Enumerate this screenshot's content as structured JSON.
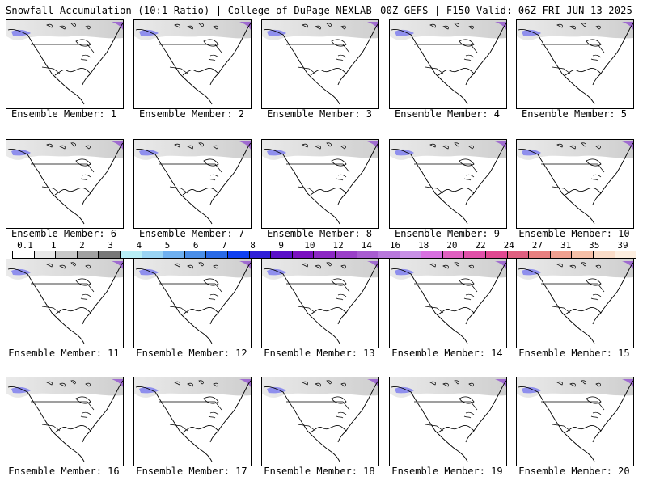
{
  "header": {
    "left": "Snowfall Accumulation (10:1 Ratio) | College of DuPage NEXLAB",
    "right": "00Z GEFS | F150 Valid: 06Z FRI JUN 13 2025"
  },
  "panels": [
    {
      "member": 1,
      "label": "Ensemble Member: 1"
    },
    {
      "member": 2,
      "label": "Ensemble Member: 2"
    },
    {
      "member": 3,
      "label": "Ensemble Member: 3"
    },
    {
      "member": 4,
      "label": "Ensemble Member: 4"
    },
    {
      "member": 5,
      "label": "Ensemble Member: 5"
    },
    {
      "member": 6,
      "label": "Ensemble Member: 6"
    },
    {
      "member": 7,
      "label": "Ensemble Member: 7"
    },
    {
      "member": 8,
      "label": "Ensemble Member: 8"
    },
    {
      "member": 9,
      "label": "Ensemble Member: 9"
    },
    {
      "member": 10,
      "label": "Ensemble Member: 10"
    },
    {
      "member": 11,
      "label": "Ensemble Member: 11"
    },
    {
      "member": 12,
      "label": "Ensemble Member: 12"
    },
    {
      "member": 13,
      "label": "Ensemble Member: 13"
    },
    {
      "member": 14,
      "label": "Ensemble Member: 14"
    },
    {
      "member": 15,
      "label": "Ensemble Member: 15"
    },
    {
      "member": 16,
      "label": "Ensemble Member: 16"
    },
    {
      "member": 17,
      "label": "Ensemble Member: 17"
    },
    {
      "member": 18,
      "label": "Ensemble Member: 18"
    },
    {
      "member": 19,
      "label": "Ensemble Member: 19"
    },
    {
      "member": 20,
      "label": "Ensemble Member: 20"
    }
  ],
  "colorbar": {
    "labels": [
      "0.1",
      "1",
      "2",
      "3",
      "4",
      "5",
      "6",
      "7",
      "8",
      "9",
      "10",
      "12",
      "14",
      "16",
      "18",
      "20",
      "22",
      "24",
      "27",
      "31",
      "35",
      "39"
    ],
    "colors": [
      "#ffffff",
      "#e8e8e8",
      "#c8c8c8",
      "#a0a0a0",
      "#787878",
      "#b8eef6",
      "#9ad4f4",
      "#6fb0f0",
      "#4a8ee8",
      "#2a6ae6",
      "#1040f0",
      "#3020d8",
      "#5a10c8",
      "#7a10c0",
      "#8c28c4",
      "#9a40c8",
      "#a85cd0",
      "#b878dc",
      "#c890e6",
      "#d870e0",
      "#e060c0",
      "#e050a8",
      "#e04890",
      "#e06080",
      "#e88080",
      "#f0a090",
      "#f6c0a8",
      "#fadcc8",
      "#fdeee0"
    ]
  }
}
